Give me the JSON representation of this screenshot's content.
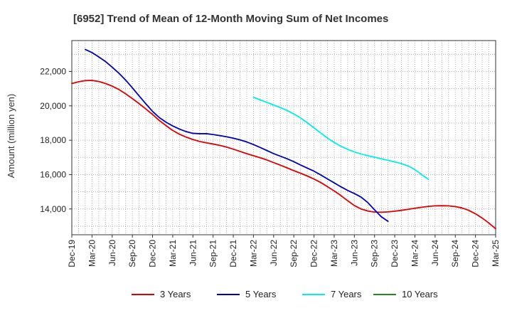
{
  "chart_data": {
    "type": "line",
    "title": "[6952]  Trend of Mean of 12-Month Moving Sum of Net Incomes",
    "xlabel": "",
    "ylabel": "Amount (million yen)",
    "ylim": [
      12500,
      23800
    ],
    "yticks": [
      14000,
      16000,
      18000,
      20000,
      22000
    ],
    "ytick_labels": [
      "14,000",
      "16,000",
      "18,000",
      "20,000",
      "22,000"
    ],
    "x_tick_labels": [
      "Dec-19",
      "Mar-20",
      "Jun-20",
      "Sep-20",
      "Dec-20",
      "Mar-21",
      "Jun-21",
      "Sep-21",
      "Dec-21",
      "Mar-22",
      "Jun-22",
      "Sep-22",
      "Dec-22",
      "Mar-23",
      "Jun-23",
      "Sep-23",
      "Dec-23",
      "Mar-24",
      "Jun-24",
      "Sep-24",
      "Dec-24",
      "Mar-25"
    ],
    "x_range_months": [
      0,
      63
    ],
    "grid": true,
    "legend_position": "bottom",
    "series": [
      {
        "name": "3 Years",
        "color": "#dd0000",
        "points": [
          [
            0,
            21300
          ],
          [
            1,
            21400
          ],
          [
            2,
            21470
          ],
          [
            3,
            21480
          ],
          [
            4,
            21420
          ],
          [
            5,
            21300
          ],
          [
            6,
            21150
          ],
          [
            7,
            20950
          ],
          [
            8,
            20700
          ],
          [
            9,
            20420
          ],
          [
            10,
            20130
          ],
          [
            11,
            19820
          ],
          [
            12,
            19500
          ],
          [
            13,
            19150
          ],
          [
            14,
            18850
          ],
          [
            15,
            18570
          ],
          [
            16,
            18350
          ],
          [
            17,
            18180
          ],
          [
            18,
            18040
          ],
          [
            19,
            17930
          ],
          [
            20,
            17850
          ],
          [
            21,
            17780
          ],
          [
            22,
            17700
          ],
          [
            23,
            17600
          ],
          [
            24,
            17480
          ],
          [
            25,
            17350
          ],
          [
            26,
            17220
          ],
          [
            27,
            17100
          ],
          [
            28,
            16980
          ],
          [
            29,
            16850
          ],
          [
            30,
            16700
          ],
          [
            31,
            16550
          ],
          [
            32,
            16390
          ],
          [
            33,
            16230
          ],
          [
            34,
            16080
          ],
          [
            35,
            15920
          ],
          [
            36,
            15740
          ],
          [
            37,
            15540
          ],
          [
            38,
            15300
          ],
          [
            39,
            15050
          ],
          [
            40,
            14780
          ],
          [
            41,
            14480
          ],
          [
            42,
            14200
          ],
          [
            43,
            14000
          ],
          [
            44,
            13880
          ],
          [
            45,
            13820
          ],
          [
            46,
            13810
          ],
          [
            47,
            13830
          ],
          [
            48,
            13870
          ],
          [
            49,
            13920
          ],
          [
            50,
            13980
          ],
          [
            51,
            14040
          ],
          [
            52,
            14100
          ],
          [
            53,
            14150
          ],
          [
            54,
            14180
          ],
          [
            55,
            14190
          ],
          [
            56,
            14180
          ],
          [
            57,
            14140
          ],
          [
            58,
            14060
          ],
          [
            59,
            13920
          ],
          [
            60,
            13720
          ],
          [
            61,
            13470
          ],
          [
            62,
            13180
          ],
          [
            63,
            12850
          ]
        ]
      },
      {
        "name": "5 Years",
        "color": "#0000bb",
        "points": [
          [
            2,
            23280
          ],
          [
            3,
            23100
          ],
          [
            4,
            22850
          ],
          [
            5,
            22580
          ],
          [
            6,
            22250
          ],
          [
            7,
            21900
          ],
          [
            8,
            21500
          ],
          [
            9,
            21050
          ],
          [
            10,
            20580
          ],
          [
            11,
            20120
          ],
          [
            12,
            19680
          ],
          [
            13,
            19320
          ],
          [
            14,
            19050
          ],
          [
            15,
            18830
          ],
          [
            16,
            18650
          ],
          [
            17,
            18500
          ],
          [
            18,
            18400
          ],
          [
            19,
            18380
          ],
          [
            20,
            18380
          ],
          [
            21,
            18330
          ],
          [
            22,
            18270
          ],
          [
            23,
            18200
          ],
          [
            24,
            18120
          ],
          [
            25,
            18020
          ],
          [
            26,
            17900
          ],
          [
            27,
            17750
          ],
          [
            28,
            17580
          ],
          [
            29,
            17400
          ],
          [
            30,
            17220
          ],
          [
            31,
            17070
          ],
          [
            32,
            16920
          ],
          [
            33,
            16750
          ],
          [
            34,
            16560
          ],
          [
            35,
            16380
          ],
          [
            36,
            16200
          ],
          [
            37,
            15980
          ],
          [
            38,
            15750
          ],
          [
            39,
            15520
          ],
          [
            40,
            15290
          ],
          [
            41,
            15080
          ],
          [
            42,
            14900
          ],
          [
            43,
            14690
          ],
          [
            44,
            14370
          ],
          [
            45,
            13950
          ],
          [
            46,
            13550
          ],
          [
            47,
            13280
          ]
        ]
      },
      {
        "name": "7 Years",
        "color": "#00eeee",
        "points": [
          [
            27,
            20500
          ],
          [
            28,
            20350
          ],
          [
            29,
            20200
          ],
          [
            30,
            20050
          ],
          [
            31,
            19900
          ],
          [
            32,
            19730
          ],
          [
            33,
            19530
          ],
          [
            34,
            19300
          ],
          [
            35,
            19020
          ],
          [
            36,
            18720
          ],
          [
            37,
            18420
          ],
          [
            38,
            18130
          ],
          [
            39,
            17870
          ],
          [
            40,
            17650
          ],
          [
            41,
            17470
          ],
          [
            42,
            17320
          ],
          [
            43,
            17200
          ],
          [
            44,
            17100
          ],
          [
            45,
            17010
          ],
          [
            46,
            16920
          ],
          [
            47,
            16830
          ],
          [
            48,
            16740
          ],
          [
            49,
            16640
          ],
          [
            50,
            16500
          ],
          [
            51,
            16290
          ],
          [
            52,
            16000
          ],
          [
            53,
            15730
          ]
        ]
      },
      {
        "name": "10 Years",
        "color": "#228b22",
        "points": []
      }
    ]
  }
}
